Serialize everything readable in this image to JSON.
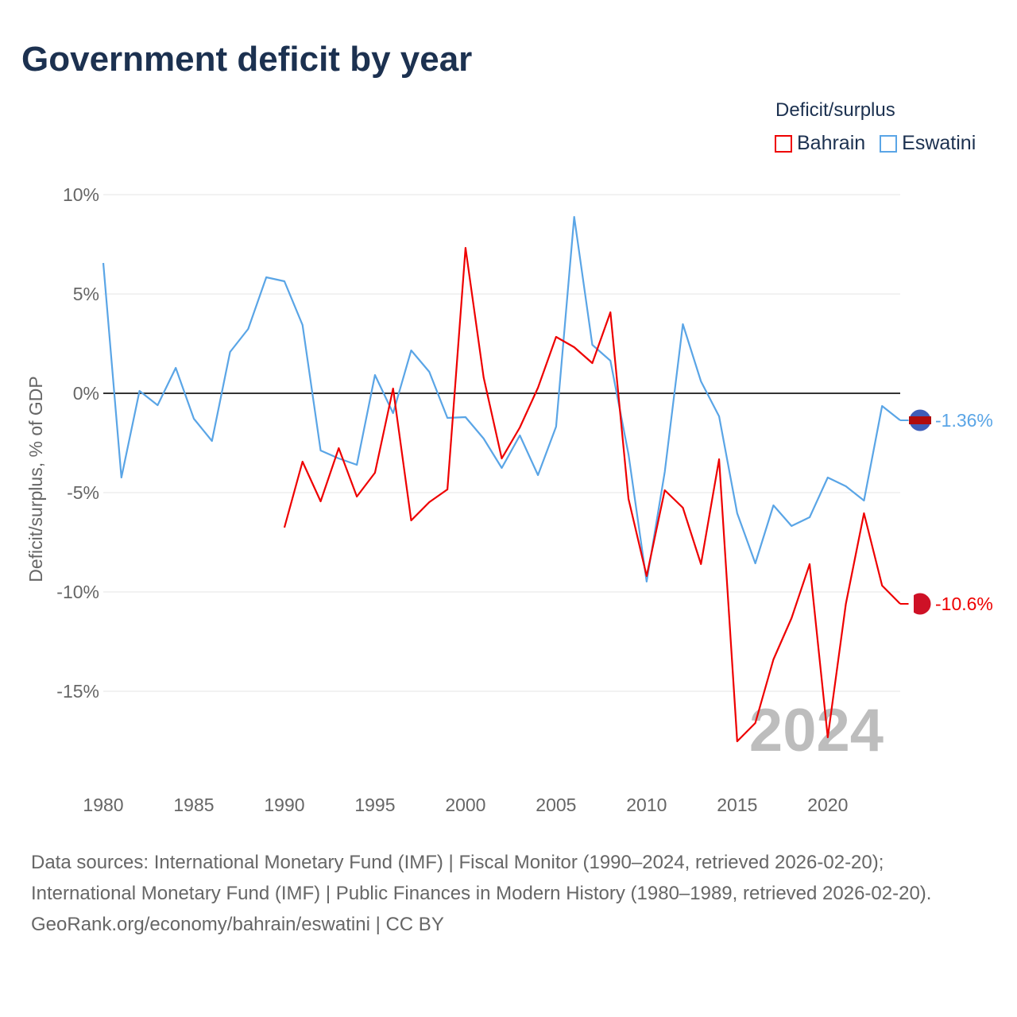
{
  "title": "Government deficit by year",
  "legend": {
    "title": "Deficit/surplus",
    "items": [
      {
        "name": "Bahrain",
        "color": "#ee0000"
      },
      {
        "name": "Eswatini",
        "color": "#5aa5e6"
      }
    ]
  },
  "footer": {
    "sources": "Data sources: International Monetary Fund (IMF) | Fiscal Monitor (1990–2024, retrieved 2026-02-20); International Monetary Fund (IMF) | Public Finances in Modern History (1980–1989, retrieved 2026-02-20).",
    "credit": "GeoRank.org/economy/bahrain/eswatini | CC BY"
  },
  "chart_data": {
    "type": "line",
    "title": "Government deficit by year",
    "ylabel": "Deficit/surplus, % of GDP",
    "xlabel": "",
    "xlim": [
      1980,
      2024
    ],
    "ylim": [
      -19.5,
      10
    ],
    "yticks": [
      {
        "v": 10,
        "label": "10%"
      },
      {
        "v": 5,
        "label": "5%"
      },
      {
        "v": 0,
        "label": "0%"
      },
      {
        "v": -5,
        "label": "-5%"
      },
      {
        "v": -10,
        "label": "-10%"
      },
      {
        "v": -15,
        "label": "-15%"
      }
    ],
    "xticks": [
      1980,
      1985,
      1990,
      1995,
      2000,
      2005,
      2010,
      2015,
      2020
    ],
    "year_watermark": "2024",
    "series": [
      {
        "name": "Eswatini",
        "color": "#5aa5e6",
        "end_label": "-1.36%",
        "start": 1980,
        "values": [
          6.56,
          -4.24,
          0.12,
          -0.6,
          1.28,
          -1.28,
          -2.4,
          2.08,
          3.24,
          5.84,
          5.64,
          3.44,
          -2.88,
          -3.28,
          -3.6,
          0.92,
          -1.0,
          2.16,
          1.08,
          -1.24,
          -1.2,
          -2.28,
          -3.76,
          -2.12,
          -4.12,
          -1.68,
          8.88,
          2.44,
          1.64,
          -3.08,
          -9.48,
          -3.96,
          3.48,
          0.6,
          -1.16,
          -6.04,
          -8.56,
          -5.64,
          -6.68,
          -6.24,
          -4.24,
          -4.68,
          -5.4,
          -0.64,
          -1.36
        ]
      },
      {
        "name": "Bahrain",
        "color": "#ee0000",
        "end_label": "-10.6%",
        "start": 1990,
        "values": [
          -6.76,
          -3.44,
          -5.44,
          -2.76,
          -5.2,
          -4.0,
          0.24,
          -6.4,
          -5.48,
          -4.84,
          7.32,
          0.8,
          -3.28,
          -1.72,
          0.28,
          2.84,
          2.32,
          1.52,
          4.08,
          -5.32,
          -9.2,
          -4.88,
          -5.76,
          -8.6,
          -3.32,
          -17.52,
          -16.6,
          -13.4,
          -11.32,
          -8.6,
          -17.32,
          -10.6,
          -6.04,
          -9.68,
          -10.6
        ]
      }
    ]
  }
}
